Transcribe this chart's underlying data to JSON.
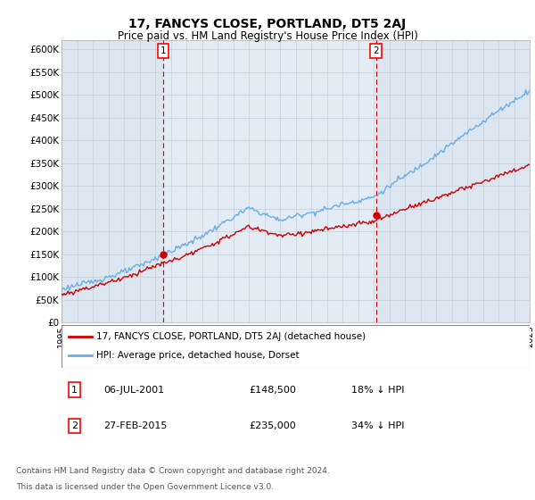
{
  "title": "17, FANCYS CLOSE, PORTLAND, DT5 2AJ",
  "subtitle": "Price paid vs. HM Land Registry's House Price Index (HPI)",
  "background_color": "#ffffff",
  "plot_bg_color": "#dce6f1",
  "plot_bg_light": "#e8f0f8",
  "grid_color": "#c8d4e0",
  "hpi_color": "#6aade4",
  "price_color": "#cc0000",
  "ylim": [
    0,
    620000
  ],
  "ytick_vals": [
    0,
    50000,
    100000,
    150000,
    200000,
    250000,
    300000,
    350000,
    400000,
    450000,
    500000,
    550000,
    600000
  ],
  "ytick_labels": [
    "£0",
    "£50K",
    "£100K",
    "£150K",
    "£200K",
    "£250K",
    "£300K",
    "£350K",
    "£400K",
    "£450K",
    "£500K",
    "£550K",
    "£600K"
  ],
  "sale1_year": 2001.5,
  "sale1_price": 148500,
  "sale2_year": 2015.15,
  "sale2_price": 235000,
  "legend_entry1": "17, FANCYS CLOSE, PORTLAND, DT5 2AJ (detached house)",
  "legend_entry2": "HPI: Average price, detached house, Dorset",
  "table_row1_num": "1",
  "table_row1_date": "06-JUL-2001",
  "table_row1_price": "£148,500",
  "table_row1_hpi": "18% ↓ HPI",
  "table_row2_num": "2",
  "table_row2_date": "27-FEB-2015",
  "table_row2_price": "£235,000",
  "table_row2_hpi": "34% ↓ HPI",
  "footnote_line1": "Contains HM Land Registry data © Crown copyright and database right 2024.",
  "footnote_line2": "This data is licensed under the Open Government Licence v3.0."
}
